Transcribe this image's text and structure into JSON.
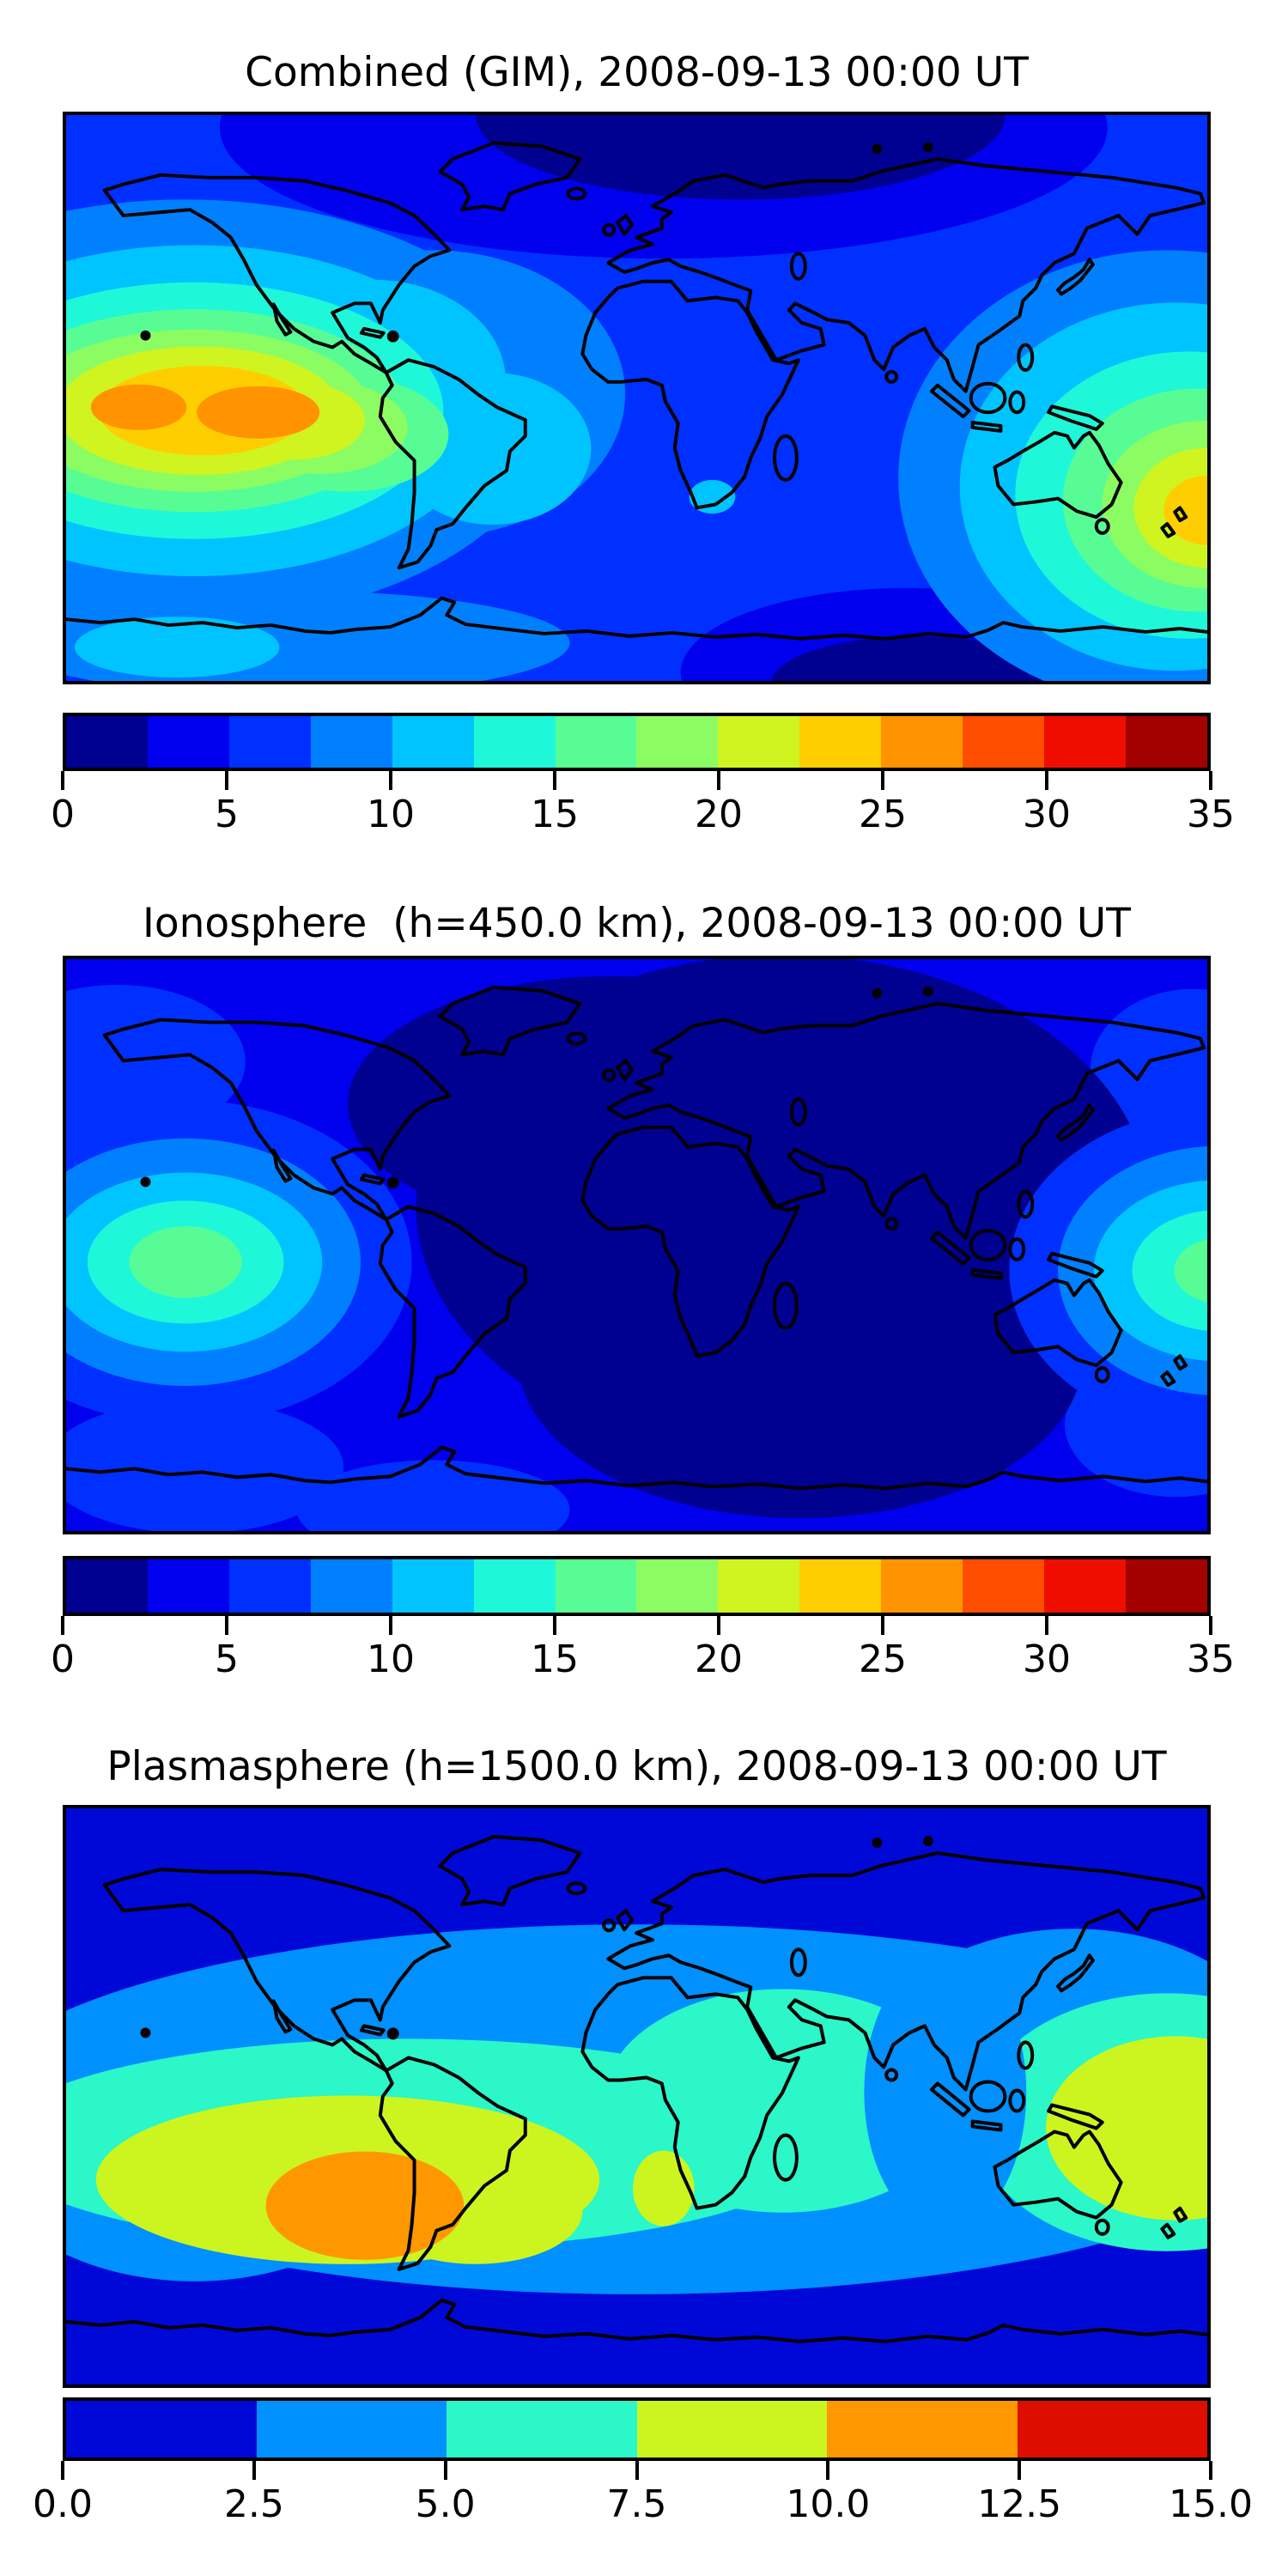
{
  "figure": {
    "background": "#ffffff",
    "datetime_ut": "2008-09-13 00:00 UT"
  },
  "panels": [
    {
      "id": "combined-gim",
      "title": "Combined (GIM), 2008-09-13 00:00 UT",
      "colorbar": {
        "min": 0,
        "max": 35,
        "band_width": 2.5,
        "segments": 14,
        "ticks": [
          "0",
          "5",
          "10",
          "15",
          "20",
          "25",
          "30",
          "35"
        ],
        "colors": [
          "#000091",
          "#0000EE",
          "#0030FF",
          "#0080FF",
          "#00C4FF",
          "#1FF7D9",
          "#57FD94",
          "#8CFC63",
          "#D0F41F",
          "#FFCE00",
          "#FF9400",
          "#FF4E00",
          "#EF0D00",
          "#A30000"
        ]
      }
    },
    {
      "id": "ionosphere",
      "title": "Ionosphere  (h=450.0 km), 2008-09-13 00:00 UT",
      "colorbar": {
        "min": 0,
        "max": 35,
        "band_width": 2.5,
        "segments": 14,
        "ticks": [
          "0",
          "5",
          "10",
          "15",
          "20",
          "25",
          "30",
          "35"
        ],
        "colors": [
          "#000091",
          "#0000EE",
          "#0030FF",
          "#0080FF",
          "#00C4FF",
          "#1FF7D9",
          "#57FD94",
          "#8CFC63",
          "#D0F41F",
          "#FFCE00",
          "#FF9400",
          "#FF4E00",
          "#EF0D00",
          "#A30000"
        ]
      }
    },
    {
      "id": "plasmasphere",
      "title": "Plasmasphere (h=1500.0 km), 2008-09-13 00:00 UT",
      "colorbar": {
        "min": 0,
        "max": 15,
        "band_width": 2.5,
        "segments": 6,
        "ticks": [
          "0.0",
          "2.5",
          "5.0",
          "7.5",
          "10.0",
          "12.5",
          "15.0"
        ],
        "colors": [
          "#0008D8",
          "#0090FF",
          "#2BF7C8",
          "#CCF520",
          "#FF9800",
          "#DD0D00"
        ]
      }
    }
  ],
  "chart_data": [
    {
      "type": "heatmap",
      "title": "Combined (GIM), 2008-09-13 00:00 UT",
      "datetime_ut": "2008-09-13 00:00",
      "map_extent": {
        "lon": [
          -180,
          180
        ],
        "lat": [
          -90,
          90
        ]
      },
      "colorbar": {
        "range": [
          0,
          35
        ],
        "tick_step": 5,
        "n_bands": 14,
        "band_width": 2.5,
        "style": "discrete jet, filled contours"
      },
      "features": [
        {
          "name": "equatorial-anomaly-east-pacific",
          "approx_lon": -135,
          "approx_lat": -3,
          "peak_value_band": [
            27.5,
            30
          ]
        },
        {
          "name": "equatorial-anomaly-west-pacific",
          "approx_lon": 177,
          "approx_lat": -8,
          "peak_value_band": [
            25,
            27.5
          ]
        },
        {
          "name": "arctic-minimum-europe",
          "approx_lon": 30,
          "approx_lat": 75,
          "value_band": [
            0,
            5
          ]
        },
        {
          "name": "south-polar-minimum",
          "approx_lon": 85,
          "approx_lat": -75,
          "value_band": [
            0,
            5
          ]
        },
        {
          "name": "ocean-background",
          "value_band": [
            5,
            10
          ]
        }
      ]
    },
    {
      "type": "heatmap",
      "title": "Ionosphere  (h=450.0 km), 2008-09-13 00:00 UT",
      "datetime_ut": "2008-09-13 00:00",
      "height_km": 450.0,
      "map_extent": {
        "lon": [
          -180,
          180
        ],
        "lat": [
          -90,
          90
        ]
      },
      "colorbar": {
        "range": [
          0,
          35
        ],
        "tick_step": 5,
        "n_bands": 14,
        "band_width": 2.5,
        "style": "discrete jet, filled contours"
      },
      "features": [
        {
          "name": "dayside-peak-east-pacific",
          "approx_lon": -142,
          "approx_lat": -5,
          "peak_value_band": [
            15,
            17.5
          ]
        },
        {
          "name": "dayside-peak-west-pacific",
          "approx_lon": 178,
          "approx_lat": -7,
          "peak_value_band": [
            15,
            17.5
          ]
        },
        {
          "name": "nightside-minimum-europe-africa-asia",
          "approx_lon": 45,
          "approx_lat": 15,
          "value_band": [
            0,
            2.5
          ]
        },
        {
          "name": "background",
          "value_band": [
            2.5,
            5
          ]
        }
      ]
    },
    {
      "type": "heatmap",
      "title": "Plasmasphere (h=1500.0 km), 2008-09-13 00:00 UT",
      "datetime_ut": "2008-09-13 00:00",
      "height_km": 1500.0,
      "map_extent": {
        "lon": [
          -180,
          180
        ],
        "lat": [
          -90,
          90
        ]
      },
      "colorbar": {
        "range": [
          0,
          15
        ],
        "tick_step": 2.5,
        "n_bands": 6,
        "band_width": 2.5,
        "style": "discrete jet, filled contours"
      },
      "features": [
        {
          "name": "plasmaspheric-peak-south-america",
          "approx_lon": -86,
          "approx_lat": -32,
          "peak_value_band": [
            10,
            12.5
          ]
        },
        {
          "name": "west-pacific-ridge",
          "approx_lon": 170,
          "approx_lat": -10,
          "value_band": [
            7.5,
            10
          ]
        },
        {
          "name": "equatorial-band",
          "approx_lat_range": [
            -40,
            25
          ],
          "value_band": [
            5,
            7.5
          ]
        },
        {
          "name": "polar-background",
          "value_band": [
            0,
            2.5
          ]
        }
      ]
    }
  ]
}
